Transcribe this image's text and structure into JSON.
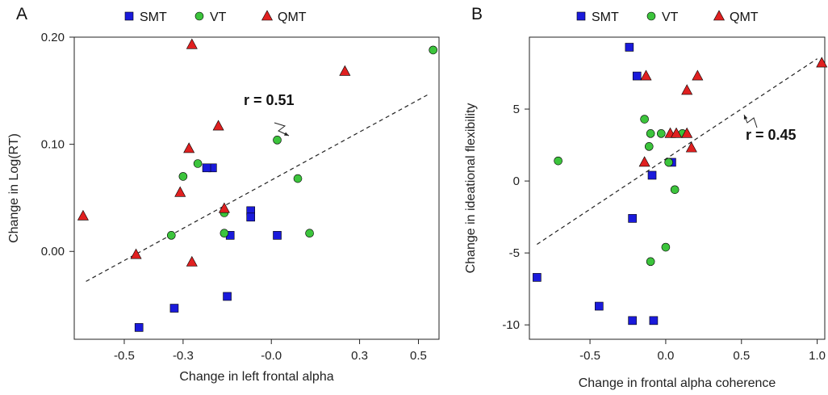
{
  "legend": [
    {
      "name": "SMT",
      "shape": "square",
      "color": "#1a1adb"
    },
    {
      "name": "VT",
      "shape": "circle",
      "color": "#3cc43c"
    },
    {
      "name": "QMT",
      "shape": "triangle",
      "color": "#e02020"
    }
  ],
  "chart_data": [
    {
      "panel": "A",
      "type": "scatter",
      "xlabel": "Change in left frontal alpha",
      "ylabel": "Change in Log(RT)",
      "xlim": [
        -0.67,
        0.57
      ],
      "ylim": [
        -0.082,
        0.2
      ],
      "xticks": [
        -0.5,
        -0.3,
        -0.0,
        0.3,
        0.5
      ],
      "xtick_labels": [
        "-0.5",
        "-0.3",
        "-0.0",
        "0.3",
        "0.5"
      ],
      "yticks": [
        0.0,
        0.1,
        0.2
      ],
      "ytick_labels": [
        "0.00",
        "0.10",
        "0.20"
      ],
      "annotation": "r = 0.51",
      "fit_line": {
        "x": [
          -0.63,
          0.53
        ],
        "y": [
          -0.028,
          0.146
        ]
      },
      "series": [
        {
          "name": "SMT",
          "shape": "square",
          "x": [
            -0.45,
            -0.33,
            -0.15,
            -0.14,
            -0.2,
            -0.22,
            -0.07,
            -0.07,
            0.02
          ],
          "y": [
            -0.071,
            -0.053,
            -0.042,
            0.015,
            0.078,
            0.078,
            0.038,
            0.032,
            0.015
          ]
        },
        {
          "name": "VT",
          "shape": "circle",
          "x": [
            -0.34,
            -0.25,
            -0.3,
            -0.16,
            -0.16,
            0.02,
            0.09,
            0.13,
            0.55
          ],
          "y": [
            0.015,
            0.082,
            0.07,
            0.036,
            0.017,
            0.104,
            0.068,
            0.017,
            0.188
          ]
        },
        {
          "name": "QMT",
          "shape": "triangle",
          "x": [
            -0.64,
            -0.46,
            -0.31,
            -0.28,
            -0.27,
            -0.18,
            -0.16,
            -0.27,
            0.25
          ],
          "y": [
            0.033,
            -0.003,
            0.055,
            0.096,
            0.193,
            0.117,
            0.04,
            -0.01,
            0.168
          ]
        }
      ]
    },
    {
      "panel": "B",
      "type": "scatter",
      "xlabel": "Change in frontal alpha coherence",
      "ylabel": "Change in ideational flexibility",
      "xlim": [
        -0.9,
        1.05
      ],
      "ylim": [
        -11,
        10
      ],
      "xticks": [
        -0.5,
        0.0,
        0.5,
        1.0
      ],
      "xtick_labels": [
        "-0.5",
        "0.0",
        "0.5",
        "1.0"
      ],
      "yticks": [
        -10,
        -5,
        0,
        5
      ],
      "ytick_labels": [
        "-10",
        "-5",
        "0",
        "5"
      ],
      "annotation": "r = 0.45",
      "fit_line": {
        "x": [
          -0.85,
          1.0
        ],
        "y": [
          -4.4,
          8.5
        ]
      },
      "series": [
        {
          "name": "SMT",
          "shape": "square",
          "x": [
            -0.85,
            -0.44,
            -0.22,
            -0.22,
            -0.08,
            -0.09,
            -0.24,
            -0.19,
            0.04
          ],
          "y": [
            -6.7,
            -8.7,
            -9.7,
            -2.6,
            -9.7,
            0.4,
            9.3,
            7.3,
            1.3
          ]
        },
        {
          "name": "VT",
          "shape": "circle",
          "x": [
            -0.71,
            -0.14,
            -0.11,
            -0.1,
            -0.1,
            -0.03,
            -0.0,
            0.02,
            0.06,
            0.11
          ],
          "y": [
            1.4,
            4.3,
            2.4,
            3.3,
            -5.6,
            3.3,
            -4.6,
            1.3,
            -0.6,
            3.3
          ]
        },
        {
          "name": "QMT",
          "shape": "triangle",
          "x": [
            -0.14,
            -0.13,
            0.03,
            0.07,
            0.14,
            0.14,
            0.17,
            0.21,
            1.03
          ],
          "y": [
            1.3,
            7.3,
            3.3,
            3.3,
            3.3,
            6.3,
            2.3,
            7.3,
            8.2
          ]
        }
      ]
    }
  ]
}
